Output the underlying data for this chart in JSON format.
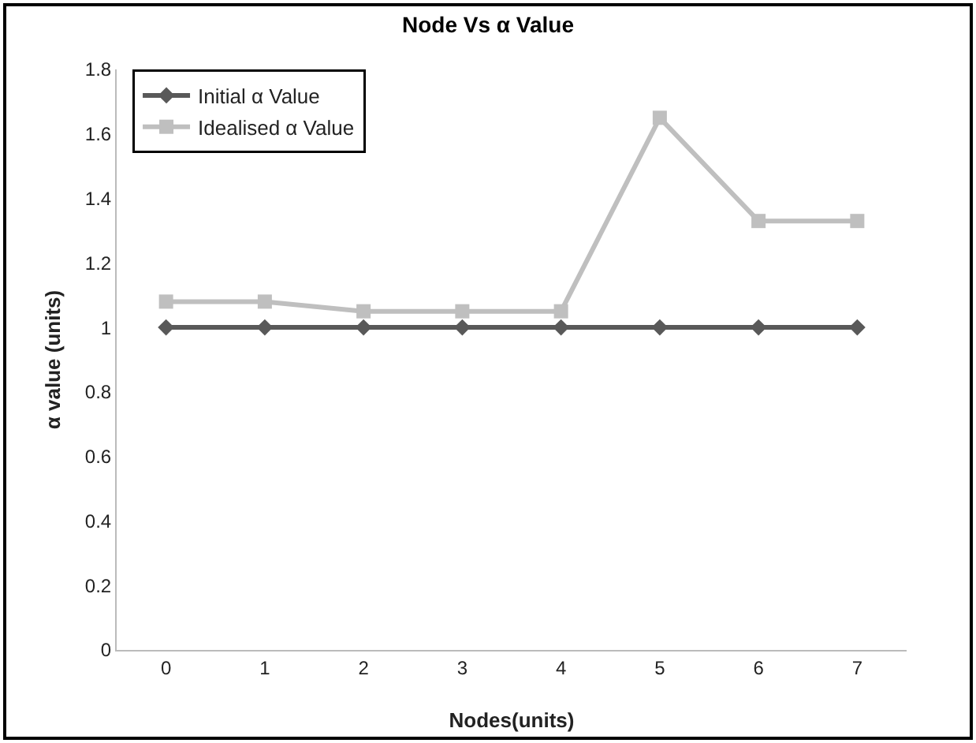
{
  "chart_data": {
    "type": "line",
    "title": "Node Vs α Value",
    "xlabel": "Nodes(units)",
    "ylabel": "α value (units)",
    "categories": [
      "0",
      "1",
      "2",
      "3",
      "4",
      "5",
      "6",
      "7"
    ],
    "series": [
      {
        "name": "Initial α Value",
        "color": "#595959",
        "marker": "diamond",
        "values": [
          1,
          1,
          1,
          1,
          1,
          1,
          1,
          1
        ]
      },
      {
        "name": "Idealised α Value",
        "color": "#bfbfbf",
        "marker": "square",
        "values": [
          1.08,
          1.08,
          1.05,
          1.05,
          1.05,
          1.65,
          1.33,
          1.33
        ]
      }
    ],
    "ylim": [
      0,
      1.8
    ],
    "yticks": [
      0,
      0.2,
      0.4,
      0.6,
      0.8,
      1,
      1.2,
      1.4,
      1.6,
      1.8
    ],
    "grid": false,
    "legend": "top left"
  }
}
